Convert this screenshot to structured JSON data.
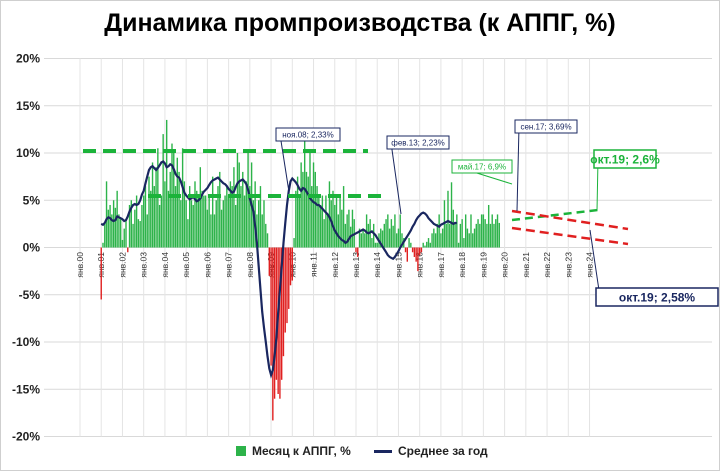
{
  "title": "Динамика промпроизводства (к АППГ, %)",
  "colors": {
    "bar_positive": "#2db34a",
    "bar_negative": "#e02020",
    "avg_line": "#1a2760",
    "green_dash": "#1bb33a",
    "red_dash": "#e02020",
    "green_callout": "#1bb33a",
    "navy_callout": "#1a2760"
  },
  "chart_data": {
    "type": "bar",
    "title": "Динамика промпроизводства (к АППГ, %)",
    "ylim": [
      -20,
      20
    ],
    "y_ticks": [
      "20%",
      "15%",
      "10%",
      "5%",
      "0%",
      "-5%",
      "-10%",
      "-15%",
      "-20%"
    ],
    "x_tick_labels": [
      "янв.00",
      "янв.01",
      "янв.02",
      "янв.03",
      "янв.04",
      "янв.05",
      "янв.06",
      "янв.07",
      "янв.08",
      "янв.09",
      "янв.10",
      "янв.11",
      "янв.12",
      "янв.13",
      "янв.14",
      "янв.15",
      "янв.16",
      "янв.17",
      "янв.18",
      "янв.19",
      "янв.20",
      "янв.21",
      "янв.22",
      "янв.23",
      "янв.24"
    ],
    "grid": true,
    "legend_position": "bottom",
    "series": [
      {
        "name": "Месяц к АППГ, %",
        "type": "bar",
        "start": "янв.00",
        "values": [
          0,
          0,
          0,
          0,
          0,
          0,
          0,
          0,
          0,
          0,
          0,
          0,
          -5.5,
          0.5,
          2.5,
          7,
          4,
          4.5,
          3.5,
          5,
          4.2,
          6,
          3.5,
          3,
          0.8,
          2,
          3,
          -0.5,
          4.5,
          5,
          2.5,
          4,
          5.5,
          3,
          2.8,
          4.5,
          5.5,
          6.5,
          3.5,
          7.5,
          6,
          9,
          6.5,
          8.5,
          10.5,
          4.5,
          5.5,
          12,
          7,
          13.5,
          6,
          8,
          11,
          10,
          6.5,
          9.5,
          8,
          5,
          10.5,
          7,
          5,
          3,
          6.5,
          5,
          4.5,
          7,
          6,
          5.5,
          8.5,
          6,
          5.5,
          5.5,
          4,
          5.5,
          3.5,
          7.5,
          3.5,
          5,
          6.5,
          8,
          4,
          5,
          5.5,
          6.5,
          5.5,
          7,
          6.5,
          8.5,
          4.5,
          10,
          9,
          6.5,
          8,
          5.5,
          7,
          10,
          6.5,
          9,
          5,
          7,
          3.5,
          5,
          6.5,
          3.5,
          5,
          2.5,
          1.5,
          -3,
          -12.5,
          -18.3,
          -16,
          -14,
          -15.5,
          -16,
          -14,
          -11.5,
          -9,
          -8,
          -6.5,
          -4,
          -3.5,
          1,
          6,
          7.5,
          5.5,
          9,
          8,
          12,
          8,
          7.5,
          10,
          6.5,
          9,
          8,
          6.5,
          5.5,
          4.5,
          5.5,
          3,
          5.5,
          3.5,
          7,
          5,
          6,
          4.5,
          5.5,
          3.5,
          5.5,
          4,
          6.5,
          2.5,
          3.5,
          4,
          2.2,
          4,
          3,
          -0.5,
          -1,
          2,
          1.5,
          2,
          1.5,
          3.5,
          2.5,
          3,
          1,
          2.5,
          0.5,
          0.5,
          1.5,
          2,
          1.8,
          2.5,
          3,
          3.5,
          2,
          3,
          2.3,
          3.5,
          1.5,
          2,
          3.5,
          1.5,
          1,
          -0.5,
          -1.5,
          1,
          0.5,
          -0.5,
          -1,
          -1.5,
          -2.5,
          -0.8,
          -0.5,
          0.5,
          0.2,
          0.6,
          1,
          0.5,
          1.5,
          2,
          1.5,
          2.5,
          3.5,
          1.5,
          2,
          5,
          2.5,
          6,
          2.5,
          6.9,
          4,
          2.5,
          3.5,
          0.5,
          2.5,
          3,
          1,
          3.5,
          2,
          1.5,
          3.5,
          1.5,
          2,
          2.5,
          3,
          2.5,
          3.5,
          3.5,
          3,
          2.5,
          4.5,
          2.5,
          3.5,
          2.5,
          3,
          3.5,
          2.6,
          0,
          0
        ]
      },
      {
        "name": "Среднее за год",
        "type": "line",
        "start": "янв.01",
        "values": [
          2.5,
          2.4,
          2.6,
          3.0,
          3.2,
          3.1,
          2.9,
          2.8,
          2.9,
          3.3,
          3.2,
          3.1,
          3.0,
          2.8,
          2.9,
          3.3,
          3.8,
          4.2,
          4.5,
          4.6,
          4.5,
          4.6,
          5.0,
          5.6,
          6.0,
          6.8,
          7.5,
          8.2,
          8.5,
          8.6,
          8.4,
          8.2,
          8.4,
          8.7,
          9.0,
          9.1,
          8.9,
          8.5,
          8.6,
          8.8,
          8.7,
          8.3,
          7.8,
          7.5,
          7.4,
          7.0,
          6.4,
          5.8,
          5.5,
          5.3,
          5.1,
          5.2,
          5.4,
          5.1,
          4.9,
          5.0,
          5.2,
          5.6,
          5.9,
          6.1,
          6.3,
          6.6,
          6.9,
          7.1,
          7.2,
          7.3,
          7.4,
          7.2,
          7.0,
          6.8,
          6.7,
          6.5,
          6.2,
          6.0,
          5.8,
          5.9,
          6.4,
          6.8,
          7.0,
          7.1,
          7.2,
          7.0,
          6.7,
          6.1,
          5.2,
          4.5,
          3.8,
          2.3,
          0.5,
          -2,
          -4.5,
          -6.8,
          -8.5,
          -10,
          -11.5,
          -12.8,
          -13.5,
          -13,
          -11.5,
          -9.5,
          -7,
          -4.5,
          -2,
          0.5,
          2.5,
          4.5,
          6,
          7,
          7.3,
          7.1,
          6.9,
          6.6,
          6.2,
          6.0,
          6.3,
          6.2,
          5.9,
          5.6,
          5.2,
          5.0,
          4.8,
          4.7,
          4.5,
          4.5,
          4.3,
          4.1,
          3.9,
          3.7,
          3.5,
          3.2,
          2.8,
          2.23,
          1.8,
          1.5,
          1.2,
          1.0,
          0.8,
          0.7,
          0.5,
          0.6,
          0.9,
          1.2,
          1.3,
          1.4,
          1.5,
          1.6,
          1.7,
          1.8,
          1.9,
          1.8,
          1.6,
          1.5,
          1.6,
          1.7,
          1.5,
          1.3,
          1.0,
          0.7,
          0.4,
          0.1,
          -0.2,
          -0.5,
          -0.8,
          -1.0,
          -1.1,
          -1.2,
          -1.0,
          -0.7,
          -0.4,
          0,
          0.3,
          0.6,
          0.9,
          1.2,
          1.5,
          1.8,
          2.2,
          2.5,
          2.9,
          3.2,
          3.4,
          3.6,
          3.69,
          3.6,
          3.4,
          3.1,
          2.9,
          2.7,
          2.5,
          2.4,
          2.3,
          2.2,
          2.4,
          2.5,
          2.6,
          2.7,
          2.8,
          2.7,
          2.6,
          2.5,
          2.6,
          2.58
        ]
      }
    ],
    "annotations": [
      {
        "text": "ноя.08; 2,33%",
        "style": "navy"
      },
      {
        "text": "фев.13; 2,23%",
        "style": "navy"
      },
      {
        "text": "сен.17; 3,69%",
        "style": "navy"
      },
      {
        "text": "май.17; 6,9%",
        "style": "green"
      },
      {
        "text": "окт.19; 2,6%",
        "style": "green-large"
      },
      {
        "text": "окт.19; 2,58%",
        "style": "navy-large"
      }
    ]
  },
  "legend": {
    "bars_label": "Месяц к АППГ, %",
    "line_label": "Среднее за год"
  }
}
